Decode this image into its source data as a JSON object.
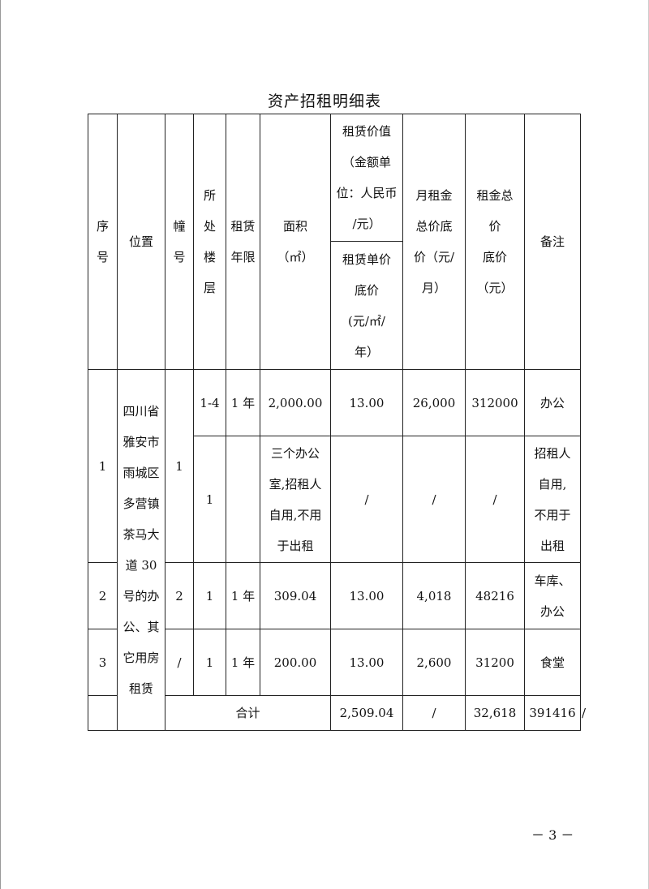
{
  "title": "资产招租明细表",
  "header": {
    "seq": "序\n号",
    "location": "位置",
    "building": "幢\n号",
    "floor": "所\n处\n楼\n层",
    "term": "租赁\n年限",
    "area": "面积\n（㎡）",
    "value_group": "租赁价值\n（金额单\n位：人民币\n/元）",
    "unit_price": "租赁单价\n底价\n(元/㎡/\n年）",
    "monthly": "月租金\n总价底\n价（元/\n月）",
    "total": "租金总\n价\n底价\n（元）",
    "remark": "备注"
  },
  "location_text": "四川省\n雅安市\n雨城区\n多营镇\n茶马大\n道 30\n号的办\n公、其\n它用房\n租赁",
  "rows": [
    {
      "seq": "1",
      "building": "1",
      "floor": "1-4",
      "term": "1 年",
      "area": "2,000.00",
      "unit_price": "13.00",
      "monthly": "26,000",
      "total": "312000",
      "remark": "办公"
    },
    {
      "floor": "1",
      "term": "",
      "area": "三个办公\n室,招租人\n自用,不用\n于出租",
      "unit_price": "/",
      "monthly": "/",
      "total": "/",
      "remark": "招租人\n自用,\n不用于\n出租"
    },
    {
      "seq": "2",
      "building": "2",
      "floor": "1",
      "term": "1 年",
      "area": "309.04",
      "unit_price": "13.00",
      "monthly": "4,018",
      "total": "48216",
      "remark": "车库、\n办公"
    },
    {
      "seq": "3",
      "building": "/",
      "floor": "1",
      "term": "1 年",
      "area": "200.00",
      "unit_price": "13.00",
      "monthly": "2,600",
      "total": "31200",
      "remark": "食堂"
    }
  ],
  "total_row": {
    "label": "合计",
    "area": "2,509.04",
    "unit_price": "/",
    "monthly": "32,618",
    "total": "391416",
    "remark": "/"
  },
  "page_number": "－ 3 －"
}
